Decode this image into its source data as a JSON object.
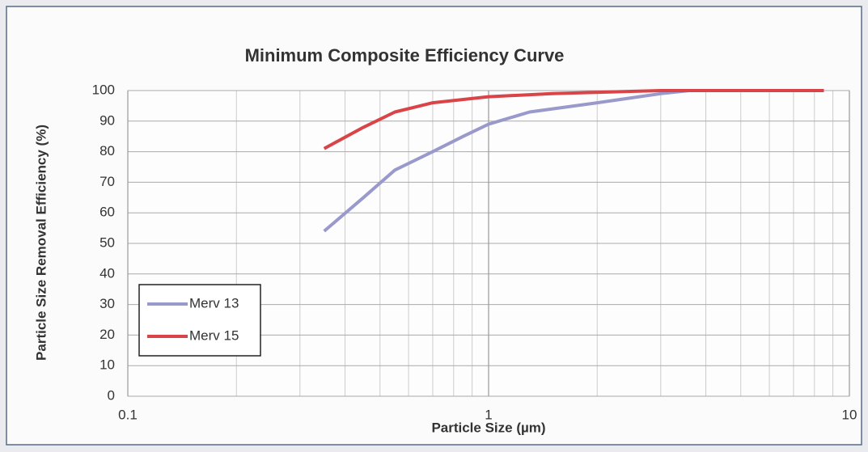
{
  "chart_data": {
    "type": "line",
    "title": "Minimum Composite Efficiency Curve",
    "x_label": "Particle Size (µm)",
    "y_label": "Particle Size Removal Efficiency (%)",
    "x_scale": "log",
    "xlim": [
      0.1,
      10
    ],
    "xticks": [
      0.1,
      1,
      10
    ],
    "x_minor_ticks": [
      0.2,
      0.3,
      0.4,
      0.5,
      0.6,
      0.7,
      0.8,
      0.9,
      2,
      3,
      4,
      5,
      6,
      7,
      8,
      9
    ],
    "ylim": [
      0,
      100
    ],
    "yticks": [
      0,
      10,
      20,
      30,
      40,
      50,
      60,
      70,
      80,
      90,
      100
    ],
    "grid": true,
    "legend": "lower left",
    "series": [
      {
        "name": "Merv 13",
        "color": "#9999cc",
        "x": [
          0.35,
          0.45,
          0.55,
          0.7,
          0.85,
          1,
          1.3,
          2,
          3,
          3.6,
          8.5
        ],
        "values": [
          54,
          65,
          74,
          80,
          85,
          89,
          93,
          96,
          99,
          100,
          100
        ]
      },
      {
        "name": "Merv 15",
        "color": "#d94448",
        "x": [
          0.35,
          0.45,
          0.55,
          0.7,
          1,
          1.5,
          3,
          8.5
        ],
        "values": [
          81,
          88,
          93,
          96,
          98,
          99,
          100,
          100
        ]
      }
    ]
  }
}
